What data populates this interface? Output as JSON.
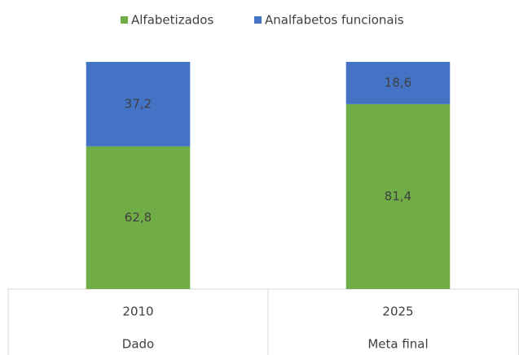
{
  "chart_data": {
    "type": "stacked_bar",
    "categories": [
      "2010",
      "2025"
    ],
    "category_groups": [
      "Dado",
      "Meta final"
    ],
    "series": [
      {
        "name": "Alfabetizados",
        "color": "#70ad47",
        "values": [
          62.8,
          81.4
        ],
        "value_labels": [
          "62,8",
          "81,4"
        ]
      },
      {
        "name": "Analfabetos funcionais",
        "color": "#4472c4",
        "values": [
          37.2,
          18.6
        ],
        "value_labels": [
          "37,2",
          "18,6"
        ]
      }
    ],
    "ylim": [
      0,
      100
    ],
    "legend": "top"
  }
}
